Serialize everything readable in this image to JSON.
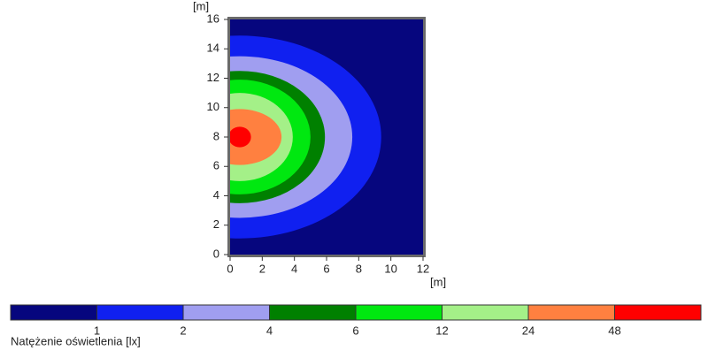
{
  "chart_data": {
    "type": "contour",
    "x_label": "[m]",
    "y_label": "[m]",
    "xlim": [
      0,
      12
    ],
    "ylim": [
      0,
      16
    ],
    "xticks": [
      0,
      2,
      4,
      6,
      8,
      10,
      12
    ],
    "yticks": [
      0,
      2,
      4,
      6,
      8,
      10,
      12,
      14,
      16
    ],
    "center": {
      "x": 0.6,
      "y": 8
    },
    "contours": [
      {
        "rx": 8.8,
        "ry": 6.9
      },
      {
        "rx": 7.0,
        "ry": 5.5
      },
      {
        "rx": 5.3,
        "ry": 4.5
      },
      {
        "rx": 4.4,
        "ry": 3.9
      },
      {
        "rx": 3.3,
        "ry": 3.0
      },
      {
        "rx": 2.6,
        "ry": 1.9
      },
      {
        "rx": 0.7,
        "ry": 0.7
      }
    ],
    "colorbar": {
      "title": "Natężenie oświetlenia [lx]",
      "colors": [
        "#06067e",
        "#1020f0",
        "#a09ef0",
        "#008000",
        "#00e810",
        "#a4f088",
        "#ff8040",
        "#ff0000"
      ],
      "ticks": [
        1,
        2,
        4,
        6,
        12,
        24,
        48
      ]
    }
  }
}
